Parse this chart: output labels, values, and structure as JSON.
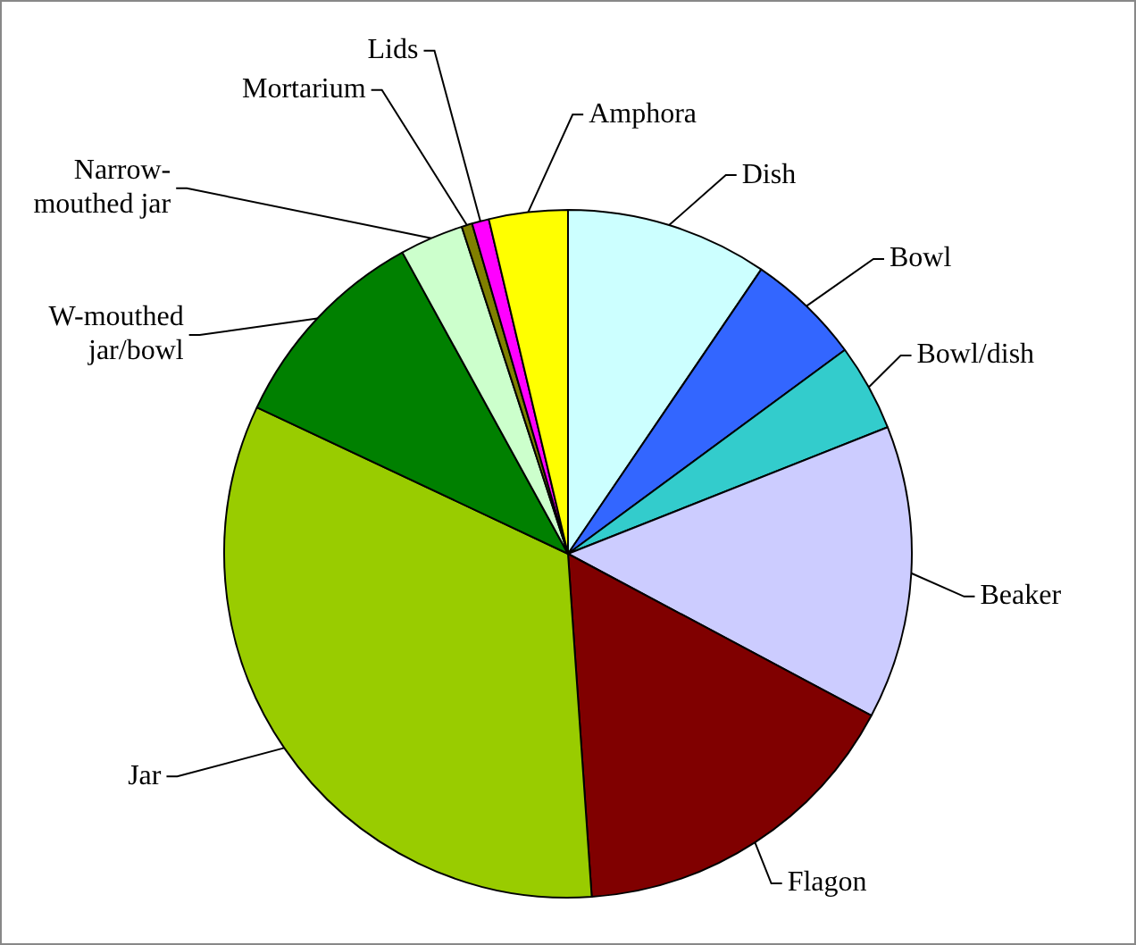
{
  "chart_data": {
    "type": "pie",
    "categories": [
      "Dish",
      "Bowl",
      "Bowl/dish",
      "Beaker",
      "Flagon",
      "Jar",
      "W-mouthed jar/bowl",
      "Narrow-mouthed jar",
      "Mortarium",
      "Lids",
      "Amphora"
    ],
    "values": [
      9.5,
      5.4,
      4.1,
      13.8,
      16.1,
      33.1,
      10.0,
      3.0,
      0.5,
      0.8,
      3.7
    ],
    "colors": [
      "#ccffff",
      "#3366ff",
      "#33cccc",
      "#ccccff",
      "#800000",
      "#99cc00",
      "#008000",
      "#ccffcc",
      "#808000",
      "#ff00ff",
      "#ffff00"
    ],
    "legend": false
  }
}
